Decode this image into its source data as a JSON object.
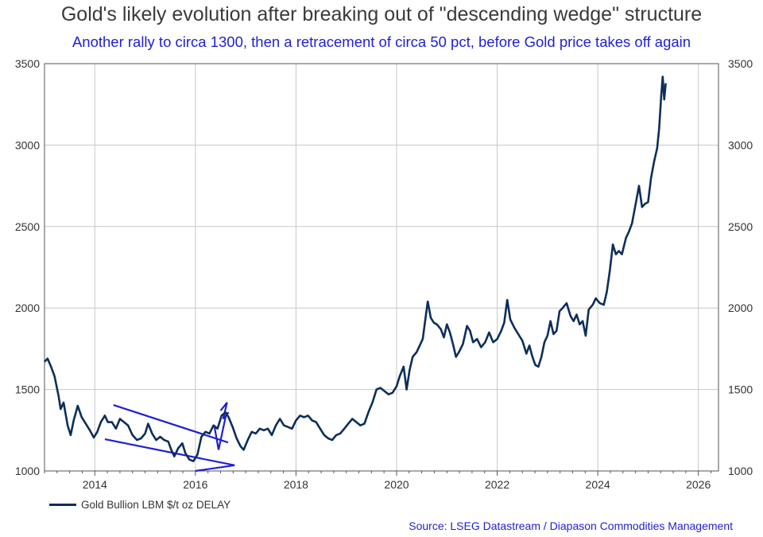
{
  "header": {
    "title": "Gold's likely evolution after breaking out of \"descending wedge\" structure",
    "subtitle": "Another rally to circa 1300, then a retracement of circa 50 pct, before Gold price takes off again"
  },
  "footer": {
    "source": "Source: LSEG Datastream / Diapason Commodities Management"
  },
  "colors": {
    "series": "#0d2e5a",
    "annotation": "#1f1fd6",
    "grid": "#c8c8c8",
    "axis": "#555555"
  },
  "chart_data": {
    "type": "line",
    "xlim": [
      2013.0,
      2026.4
    ],
    "ylim": [
      1000,
      3500
    ],
    "x_ticks": [
      2014,
      2016,
      2018,
      2020,
      2022,
      2024,
      2026
    ],
    "y_ticks": [
      1000,
      1500,
      2000,
      2500,
      3000,
      3500
    ],
    "grid": true,
    "legend_position": "bottom-left",
    "series": [
      {
        "name": "Gold Bullion LBM $/t oz DELAY",
        "points": [
          [
            2013.0,
            1670
          ],
          [
            2013.06,
            1690
          ],
          [
            2013.13,
            1640
          ],
          [
            2013.2,
            1580
          ],
          [
            2013.28,
            1460
          ],
          [
            2013.32,
            1380
          ],
          [
            2013.38,
            1420
          ],
          [
            2013.46,
            1280
          ],
          [
            2013.52,
            1220
          ],
          [
            2013.58,
            1310
          ],
          [
            2013.66,
            1400
          ],
          [
            2013.74,
            1330
          ],
          [
            2013.82,
            1290
          ],
          [
            2013.9,
            1250
          ],
          [
            2013.98,
            1205
          ],
          [
            2014.05,
            1240
          ],
          [
            2014.12,
            1300
          ],
          [
            2014.2,
            1340
          ],
          [
            2014.26,
            1300
          ],
          [
            2014.34,
            1300
          ],
          [
            2014.42,
            1260
          ],
          [
            2014.5,
            1320
          ],
          [
            2014.58,
            1300
          ],
          [
            2014.66,
            1280
          ],
          [
            2014.75,
            1220
          ],
          [
            2014.84,
            1190
          ],
          [
            2014.92,
            1200
          ],
          [
            2015.0,
            1230
          ],
          [
            2015.06,
            1290
          ],
          [
            2015.14,
            1230
          ],
          [
            2015.22,
            1190
          ],
          [
            2015.3,
            1210
          ],
          [
            2015.38,
            1190
          ],
          [
            2015.46,
            1180
          ],
          [
            2015.52,
            1130
          ],
          [
            2015.58,
            1090
          ],
          [
            2015.66,
            1140
          ],
          [
            2015.74,
            1170
          ],
          [
            2015.8,
            1110
          ],
          [
            2015.88,
            1070
          ],
          [
            2015.96,
            1060
          ],
          [
            2016.04,
            1100
          ],
          [
            2016.12,
            1210
          ],
          [
            2016.2,
            1240
          ],
          [
            2016.28,
            1230
          ],
          [
            2016.36,
            1280
          ],
          [
            2016.44,
            1260
          ],
          [
            2016.52,
            1340
          ],
          [
            2016.6,
            1360
          ],
          [
            2016.66,
            1330
          ],
          [
            2016.74,
            1270
          ],
          [
            2016.82,
            1200
          ],
          [
            2016.9,
            1150
          ],
          [
            2016.96,
            1130
          ],
          [
            2017.04,
            1190
          ],
          [
            2017.12,
            1240
          ],
          [
            2017.2,
            1230
          ],
          [
            2017.28,
            1260
          ],
          [
            2017.36,
            1250
          ],
          [
            2017.44,
            1260
          ],
          [
            2017.52,
            1220
          ],
          [
            2017.6,
            1280
          ],
          [
            2017.68,
            1320
          ],
          [
            2017.76,
            1280
          ],
          [
            2017.84,
            1270
          ],
          [
            2017.92,
            1260
          ],
          [
            2018.0,
            1310
          ],
          [
            2018.08,
            1340
          ],
          [
            2018.16,
            1330
          ],
          [
            2018.24,
            1340
          ],
          [
            2018.32,
            1310
          ],
          [
            2018.4,
            1300
          ],
          [
            2018.48,
            1260
          ],
          [
            2018.56,
            1220
          ],
          [
            2018.64,
            1200
          ],
          [
            2018.72,
            1190
          ],
          [
            2018.8,
            1220
          ],
          [
            2018.88,
            1230
          ],
          [
            2018.96,
            1260
          ],
          [
            2019.04,
            1290
          ],
          [
            2019.12,
            1320
          ],
          [
            2019.2,
            1300
          ],
          [
            2019.28,
            1280
          ],
          [
            2019.36,
            1290
          ],
          [
            2019.44,
            1360
          ],
          [
            2019.52,
            1420
          ],
          [
            2019.6,
            1500
          ],
          [
            2019.68,
            1510
          ],
          [
            2019.76,
            1490
          ],
          [
            2019.84,
            1470
          ],
          [
            2019.92,
            1480
          ],
          [
            2020.0,
            1520
          ],
          [
            2020.06,
            1580
          ],
          [
            2020.14,
            1640
          ],
          [
            2020.2,
            1500
          ],
          [
            2020.26,
            1620
          ],
          [
            2020.32,
            1700
          ],
          [
            2020.4,
            1730
          ],
          [
            2020.46,
            1770
          ],
          [
            2020.52,
            1810
          ],
          [
            2020.58,
            1950
          ],
          [
            2020.62,
            2040
          ],
          [
            2020.68,
            1940
          ],
          [
            2020.74,
            1910
          ],
          [
            2020.8,
            1900
          ],
          [
            2020.88,
            1870
          ],
          [
            2020.94,
            1820
          ],
          [
            2021.0,
            1900
          ],
          [
            2021.06,
            1850
          ],
          [
            2021.12,
            1780
          ],
          [
            2021.18,
            1700
          ],
          [
            2021.24,
            1730
          ],
          [
            2021.32,
            1780
          ],
          [
            2021.4,
            1890
          ],
          [
            2021.46,
            1860
          ],
          [
            2021.52,
            1790
          ],
          [
            2021.6,
            1810
          ],
          [
            2021.68,
            1760
          ],
          [
            2021.76,
            1790
          ],
          [
            2021.84,
            1850
          ],
          [
            2021.92,
            1790
          ],
          [
            2022.0,
            1810
          ],
          [
            2022.08,
            1860
          ],
          [
            2022.14,
            1910
          ],
          [
            2022.2,
            2050
          ],
          [
            2022.26,
            1930
          ],
          [
            2022.34,
            1880
          ],
          [
            2022.42,
            1840
          ],
          [
            2022.5,
            1800
          ],
          [
            2022.58,
            1720
          ],
          [
            2022.64,
            1770
          ],
          [
            2022.7,
            1700
          ],
          [
            2022.76,
            1650
          ],
          [
            2022.82,
            1640
          ],
          [
            2022.88,
            1700
          ],
          [
            2022.94,
            1790
          ],
          [
            2023.0,
            1830
          ],
          [
            2023.06,
            1920
          ],
          [
            2023.12,
            1840
          ],
          [
            2023.18,
            1860
          ],
          [
            2023.24,
            1980
          ],
          [
            2023.3,
            2000
          ],
          [
            2023.38,
            2030
          ],
          [
            2023.46,
            1950
          ],
          [
            2023.52,
            1920
          ],
          [
            2023.58,
            1960
          ],
          [
            2023.64,
            1900
          ],
          [
            2023.7,
            1920
          ],
          [
            2023.76,
            1830
          ],
          [
            2023.82,
            1990
          ],
          [
            2023.9,
            2020
          ],
          [
            2023.96,
            2060
          ],
          [
            2024.04,
            2030
          ],
          [
            2024.12,
            2020
          ],
          [
            2024.18,
            2100
          ],
          [
            2024.24,
            2230
          ],
          [
            2024.3,
            2390
          ],
          [
            2024.36,
            2330
          ],
          [
            2024.42,
            2350
          ],
          [
            2024.48,
            2330
          ],
          [
            2024.56,
            2430
          ],
          [
            2024.62,
            2470
          ],
          [
            2024.68,
            2520
          ],
          [
            2024.76,
            2650
          ],
          [
            2024.82,
            2750
          ],
          [
            2024.88,
            2620
          ],
          [
            2024.94,
            2640
          ],
          [
            2025.0,
            2650
          ],
          [
            2025.06,
            2800
          ],
          [
            2025.12,
            2900
          ],
          [
            2025.18,
            2980
          ],
          [
            2025.22,
            3100
          ],
          [
            2025.26,
            3300
          ],
          [
            2025.29,
            3420
          ],
          [
            2025.32,
            3280
          ],
          [
            2025.35,
            3380
          ]
        ]
      }
    ],
    "annotations": [
      {
        "type": "line",
        "from": [
          2014.37,
          1405
        ],
        "to": [
          2016.65,
          1175
        ]
      },
      {
        "type": "line",
        "from": [
          2014.2,
          1195
        ],
        "to": [
          2016.78,
          1035
        ]
      },
      {
        "type": "line",
        "from": [
          2016.78,
          1035
        ],
        "to": [
          2016.0,
          1000
        ]
      },
      {
        "type": "polyline",
        "points": [
          [
            2016.5,
            1370
          ],
          [
            2016.63,
            1420
          ],
          [
            2016.55,
            1320
          ],
          [
            2016.66,
            1360
          ]
        ]
      },
      {
        "type": "polyline",
        "points": [
          [
            2016.38,
            1270
          ],
          [
            2016.46,
            1130
          ],
          [
            2016.62,
            1360
          ]
        ]
      }
    ]
  }
}
